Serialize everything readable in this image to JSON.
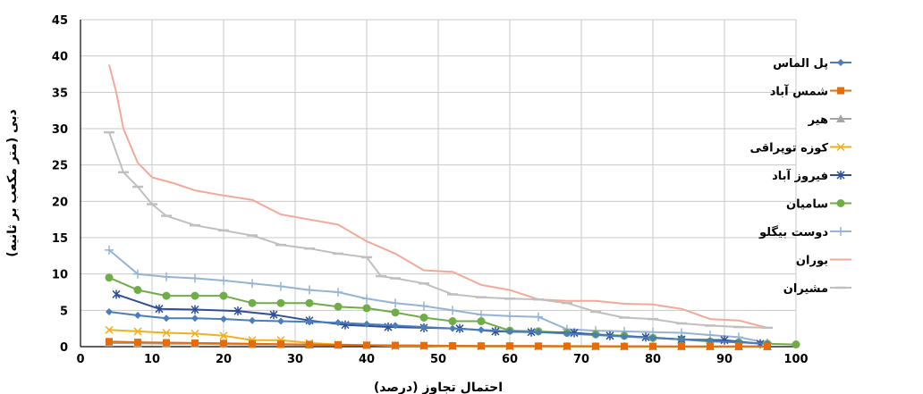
{
  "chart_data": {
    "type": "line",
    "xlabel": "احتمال تجاوز (درصد)",
    "ylabel": "دبی (متر مکعب بر ثانیه)",
    "xlim": [
      0,
      100
    ],
    "ylim": [
      0,
      45
    ],
    "xticks": [
      0,
      10,
      20,
      30,
      40,
      50,
      60,
      70,
      80,
      90,
      100
    ],
    "yticks": [
      0,
      5,
      10,
      15,
      20,
      25,
      30,
      35,
      40,
      45
    ],
    "grid": true,
    "legend_position": "right",
    "series": [
      {
        "name": "پل الماس",
        "color": "#4a7ebb",
        "marker": "diamond",
        "x": [
          4,
          8,
          12,
          16,
          20,
          24,
          28,
          32,
          36,
          40,
          44,
          48,
          52,
          56,
          60,
          64,
          68,
          72,
          76,
          80,
          84,
          88,
          92,
          96
        ],
        "y": [
          4.8,
          4.3,
          3.9,
          3.9,
          3.8,
          3.6,
          3.5,
          3.4,
          3.3,
          3.1,
          2.9,
          2.7,
          2.5,
          2.3,
          2.1,
          2.0,
          1.8,
          1.6,
          1.4,
          1.2,
          1.0,
          0.8,
          0.6,
          0.4
        ]
      },
      {
        "name": "شمس آباد",
        "color": "#e46c0a",
        "marker": "square",
        "x": [
          4,
          8,
          12,
          16,
          20,
          24,
          28,
          32,
          36,
          40,
          44,
          48,
          52,
          56,
          60,
          64,
          68,
          72,
          76,
          80,
          84,
          88,
          92,
          96
        ],
        "y": [
          0.7,
          0.6,
          0.55,
          0.5,
          0.45,
          0.4,
          0.35,
          0.3,
          0.25,
          0.2,
          0.18,
          0.15,
          0.12,
          0.1,
          0.1,
          0.08,
          0.07,
          0.06,
          0.05,
          0.05,
          0.04,
          0.03,
          0.02,
          0.02
        ]
      },
      {
        "name": "هیر",
        "color": "#a5a5a5",
        "marker": "triangle",
        "x": [
          4,
          8,
          12,
          16,
          20,
          24,
          28,
          32,
          36,
          40,
          44,
          48,
          52,
          56,
          60,
          64,
          68,
          72,
          76,
          80,
          84,
          88,
          92,
          96
        ],
        "y": [
          0.5,
          0.45,
          0.4,
          0.4,
          0.35,
          0.3,
          0.3,
          0.25,
          0.2,
          0.2,
          0.15,
          0.15,
          0.1,
          0.1,
          0.1,
          0.08,
          0.06,
          0.05,
          0.05,
          0.04,
          0.03,
          0.03,
          0.02,
          0.02
        ]
      },
      {
        "name": "کوزه توپراقی",
        "color": "#f0b020",
        "marker": "x",
        "x": [
          4,
          8,
          12,
          16,
          20,
          24,
          28,
          32,
          36,
          40,
          44,
          48,
          52,
          56,
          60,
          64,
          68,
          72,
          76,
          80,
          84,
          88,
          92,
          96
        ],
        "y": [
          2.3,
          2.1,
          1.9,
          1.8,
          1.5,
          0.9,
          0.9,
          0.5,
          0.3,
          0.2,
          0.1,
          0.1,
          0.05,
          0.05,
          0.02,
          0.02,
          0.01,
          0.01,
          0.01,
          0.0,
          0.0,
          0.0,
          0.0,
          0.0
        ]
      },
      {
        "name": "فیروز آباد",
        "color": "#2e4e9a",
        "marker": "asterisk",
        "x": [
          5,
          11,
          16,
          22,
          27,
          32,
          37,
          43,
          48,
          53,
          58,
          63,
          69,
          74,
          79,
          84,
          90,
          95
        ],
        "y": [
          7.2,
          5.2,
          5.1,
          4.9,
          4.4,
          3.6,
          3.0,
          2.7,
          2.6,
          2.5,
          2.1,
          2.0,
          1.9,
          1.5,
          1.3,
          1.0,
          0.9,
          0.4
        ]
      },
      {
        "name": "سامیان",
        "color": "#70ad47",
        "marker": "circle",
        "x": [
          4,
          8,
          12,
          16,
          20,
          24,
          28,
          32,
          36,
          40,
          44,
          48,
          52,
          56,
          60,
          64,
          68,
          72,
          76,
          80,
          84,
          88,
          92,
          96,
          100
        ],
        "y": [
          9.5,
          7.8,
          7.0,
          7.0,
          7.0,
          6.0,
          6.0,
          6.0,
          5.5,
          5.3,
          4.7,
          4.0,
          3.5,
          3.5,
          2.2,
          2.1,
          1.9,
          1.7,
          1.5,
          1.2,
          1.0,
          0.7,
          0.6,
          0.4,
          0.3
        ]
      },
      {
        "name": "دوست بیگلو",
        "color": "#95b3d7",
        "marker": "plus",
        "x": [
          4,
          8,
          12,
          16,
          20,
          24,
          28,
          32,
          36,
          40,
          44,
          48,
          52,
          56,
          60,
          64,
          68,
          72,
          76,
          80,
          84,
          88,
          92,
          96
        ],
        "y": [
          13.3,
          10.0,
          9.6,
          9.4,
          9.1,
          8.7,
          8.3,
          7.8,
          7.5,
          6.6,
          6.0,
          5.6,
          5.0,
          4.4,
          4.2,
          4.1,
          2.4,
          2.2,
          2.1,
          2.0,
          1.9,
          1.6,
          1.3,
          0.5
        ]
      },
      {
        "name": "بوران",
        "color": "#f4a89a",
        "marker": "none",
        "x": [
          4,
          5,
          6,
          8,
          10,
          13,
          16,
          20,
          24,
          28,
          32,
          36,
          40,
          44,
          48,
          52,
          56,
          60,
          64,
          68,
          72,
          76,
          80,
          84,
          88,
          92,
          96
        ],
        "y": [
          38.8,
          35,
          30,
          25.3,
          23.3,
          22.5,
          21.5,
          20.8,
          20.2,
          18.2,
          17.5,
          16.8,
          14.5,
          12.8,
          10.5,
          10.3,
          8.5,
          7.8,
          6.5,
          6.3,
          6.3,
          5.9,
          5.8,
          5.2,
          3.8,
          3.6,
          2.6
        ]
      },
      {
        "name": "مشیران",
        "color": "#bfbfbf",
        "marker": "dash",
        "x": [
          4,
          6,
          8,
          10,
          12,
          16,
          20,
          24,
          28,
          32,
          36,
          40,
          42,
          44,
          48,
          52,
          56,
          60,
          64,
          68,
          72,
          76,
          80,
          84,
          88,
          92,
          96
        ],
        "y": [
          29.5,
          24,
          22,
          19.6,
          18.0,
          16.7,
          16.0,
          15.3,
          14.0,
          13.5,
          12.8,
          12.3,
          9.7,
          9.4,
          8.7,
          7.2,
          6.8,
          6.6,
          6.5,
          6.0,
          4.8,
          4.0,
          3.8,
          3.2,
          2.9,
          2.7,
          2.6
        ]
      }
    ]
  }
}
